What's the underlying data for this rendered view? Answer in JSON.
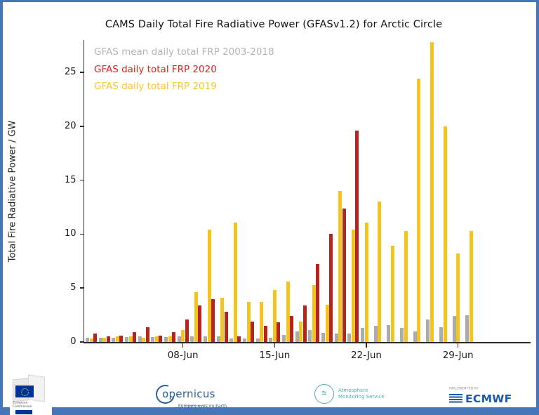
{
  "frame": {
    "border_color": "#4776b8"
  },
  "chart_data": {
    "type": "bar",
    "title": "CAMS Daily Total Fire Radiative Power (GFASv1.2) for Arctic Circle",
    "xlabel": "",
    "ylabel": "Total Fire Radiative Power / GW",
    "ylim": [
      0,
      28
    ],
    "yticks": [
      0,
      5,
      10,
      15,
      20,
      25
    ],
    "yticklabels": [
      "0",
      "5",
      "10",
      "15",
      "20",
      "25"
    ],
    "xtick_days": [
      8,
      15,
      22,
      29
    ],
    "xtick_labels": [
      "08-Jun",
      "15-Jun",
      "22-Jun",
      "29-Jun"
    ],
    "grid": false,
    "legend_position": "upper-left-inside",
    "categories": [
      "01-Jun",
      "02-Jun",
      "03-Jun",
      "04-Jun",
      "05-Jun",
      "06-Jun",
      "07-Jun",
      "08-Jun",
      "09-Jun",
      "10-Jun",
      "11-Jun",
      "12-Jun",
      "13-Jun",
      "14-Jun",
      "15-Jun",
      "16-Jun",
      "17-Jun",
      "18-Jun",
      "19-Jun",
      "20-Jun",
      "21-Jun",
      "22-Jun",
      "23-Jun",
      "24-Jun",
      "25-Jun",
      "26-Jun",
      "27-Jun",
      "28-Jun",
      "29-Jun",
      "30-Jun"
    ],
    "group_offsets": [
      0,
      2,
      1
    ],
    "series": [
      {
        "name": "GFAS mean daily total FRP 2003-2018",
        "color": "#ababab",
        "legend_color": "#b5b5b5",
        "values": [
          0.4,
          0.4,
          0.42,
          0.48,
          0.55,
          0.45,
          0.45,
          0.5,
          0.5,
          0.55,
          0.5,
          0.3,
          0.32,
          0.35,
          0.4,
          0.65,
          1.0,
          1.1,
          0.85,
          0.75,
          0.8,
          1.3,
          1.5,
          1.55,
          1.3,
          0.95,
          2.1,
          1.35,
          2.4,
          2.45
        ]
      },
      {
        "name": "GFAS daily total FRP 2020",
        "color": "#b5241f",
        "legend_color": "#df231d",
        "values": [
          0.8,
          0.5,
          0.6,
          0.9,
          1.4,
          0.6,
          0.9,
          2.1,
          3.4,
          4.0,
          2.8,
          0.5,
          1.9,
          1.5,
          1.8,
          2.4,
          3.4,
          7.2,
          10.0,
          12.4,
          19.6,
          null,
          null,
          null,
          null,
          null,
          null,
          null,
          null,
          null
        ]
      },
      {
        "name": "GFAS daily total FRP 2019",
        "color": "#f5c31d",
        "legend_color": "#fdc52c",
        "values": [
          0.3,
          0.4,
          0.5,
          0.5,
          0.4,
          0.5,
          0.55,
          1.1,
          4.6,
          10.4,
          4.1,
          11.1,
          3.7,
          3.7,
          4.8,
          5.6,
          1.9,
          5.25,
          3.45,
          14.0,
          10.4,
          11.1,
          13.0,
          8.9,
          10.3,
          24.4,
          27.8,
          20.0,
          8.2,
          10.3
        ]
      }
    ]
  },
  "footer": {
    "ec": {
      "line1": "European",
      "line2": "Commission"
    },
    "copernicus": {
      "name_first": "C",
      "name_rest": "opernicus",
      "tagline": "Europe's eyes on Earth"
    },
    "ams": {
      "line1": "Atmosphere",
      "line2": "Monitoring Service",
      "icon_glyph": "≋"
    },
    "ecmwf": {
      "implemented_by": "IMPLEMENTED BY",
      "name": "ECMWF"
    }
  }
}
